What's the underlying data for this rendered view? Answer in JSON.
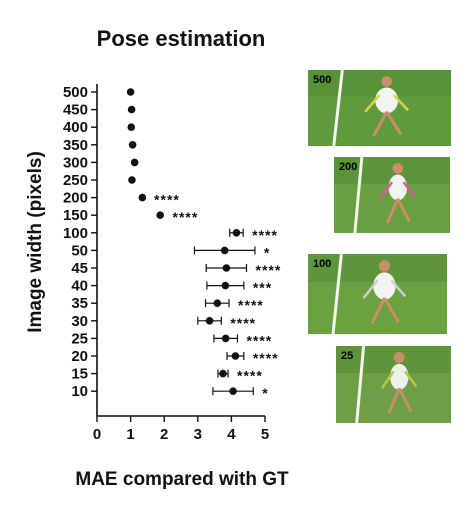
{
  "chart_data": {
    "type": "scatter",
    "title": "Pose estimation",
    "xlabel": "MAE compared with GT",
    "ylabel": "Image width (pixels)",
    "xlim": [
      0,
      5
    ],
    "xticks": [
      "0",
      "1",
      "2",
      "3",
      "4",
      "5"
    ],
    "categories": [
      "500",
      "450",
      "400",
      "350",
      "300",
      "250",
      "200",
      "150",
      "100",
      "50",
      "45",
      "40",
      "35",
      "30",
      "25",
      "20",
      "15",
      "10"
    ],
    "series": [
      {
        "values": [
          1.0,
          1.03,
          1.02,
          1.06,
          1.12,
          1.04,
          1.35,
          1.88,
          4.15,
          3.8,
          3.85,
          3.82,
          3.58,
          3.35,
          3.83,
          4.12,
          3.75,
          4.05
        ],
        "error": [
          0.04,
          0.03,
          0.03,
          0.04,
          0.04,
          0.04,
          0.08,
          0.1,
          0.2,
          0.9,
          0.6,
          0.55,
          0.35,
          0.35,
          0.35,
          0.25,
          0.15,
          0.6
        ],
        "significance": [
          "",
          "",
          "",
          "",
          "",
          "",
          "****",
          "****",
          "****",
          "*",
          "****",
          "***",
          "****",
          "****",
          "****",
          "****",
          "****",
          "*"
        ]
      }
    ]
  },
  "thumbnails": [
    {
      "label": "500",
      "court": "#5f9a3c",
      "shirt": "#f1f4f1",
      "accent": "#d8d34a"
    },
    {
      "label": "200",
      "court": "#679f41",
      "shirt": "#f2f4f0",
      "accent": "#d85aa0"
    },
    {
      "label": "100",
      "court": "#6aa242",
      "shirt": "#f3f3f3",
      "accent": "#cfcfcf"
    },
    {
      "label": "25",
      "court": "#6e9f47",
      "shirt": "#eef0ec",
      "accent": "#b9c64a"
    }
  ]
}
